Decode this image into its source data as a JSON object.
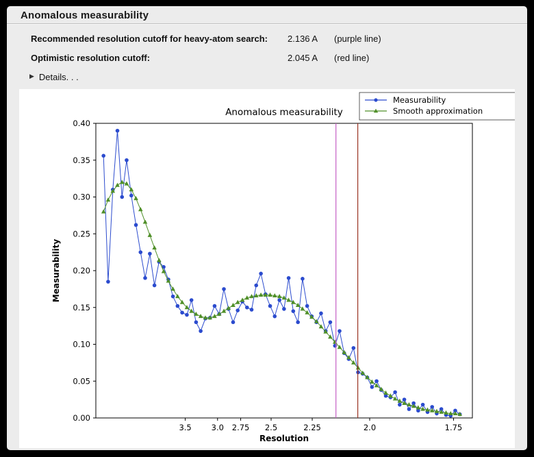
{
  "window": {
    "title": "Anomalous measurability",
    "rows": [
      {
        "label": "Recommended resolution cutoff for heavy-atom search:",
        "value": "2.136 A",
        "note": "(purple line)"
      },
      {
        "label": "Optimistic resolution cutoff:",
        "value": "2.045 A",
        "note": "(red line)"
      }
    ],
    "details": {
      "icon": "▶",
      "label": "Details. . ."
    }
  },
  "colors": {
    "panel_bg": "#ececec",
    "figure_bg": "#ffffff",
    "measurability_blue": "#2b4bce",
    "smooth_green": "#4f8f28",
    "purple_cutoff": "#c45ec4",
    "red_cutoff": "#993322",
    "axis": "#000000"
  },
  "chart_data": {
    "type": "line",
    "title": "Anomalous measurability",
    "xlabel": "Resolution",
    "ylabel": "Measurability",
    "ylim": [
      0.0,
      0.4
    ],
    "y_ticks": [
      0.0,
      0.05,
      0.1,
      0.15,
      0.2,
      0.25,
      0.3,
      0.35,
      0.4
    ],
    "x_axis": {
      "note": "x is linear in 1/d^2; labels are resolution in Angstrom, decreasing to the right",
      "tick_labels": [
        "3.5",
        "3.0",
        "2.75",
        "2.5",
        "2.25",
        "2.0",
        "1.75"
      ],
      "range_inv_d2": [
        0.0,
        0.34375
      ]
    },
    "legend": {
      "position": "upper right",
      "entries": [
        "Measurability",
        "Smooth approximation"
      ]
    },
    "grid": false,
    "vlines": [
      {
        "resolution": 2.136,
        "color": "#c45ec4",
        "meaning": "Recommended resolution cutoff (purple line)"
      },
      {
        "resolution": 2.045,
        "color": "#993322",
        "meaning": "Optimistic resolution cutoff (red line)"
      }
    ],
    "x_inv_d2": [
      0.007,
      0.0112,
      0.0155,
      0.0197,
      0.0239,
      0.0281,
      0.0324,
      0.0366,
      0.0408,
      0.045,
      0.0493,
      0.0535,
      0.0577,
      0.0619,
      0.0662,
      0.0704,
      0.0746,
      0.0788,
      0.0831,
      0.0873,
      0.0915,
      0.0957,
      0.1,
      0.1042,
      0.1084,
      0.1126,
      0.1169,
      0.1211,
      0.1253,
      0.1295,
      0.1338,
      0.138,
      0.1422,
      0.1464,
      0.1507,
      0.1549,
      0.1591,
      0.1633,
      0.1676,
      0.1718,
      0.176,
      0.1802,
      0.1845,
      0.1887,
      0.1929,
      0.1971,
      0.2014,
      0.2056,
      0.2098,
      0.214,
      0.2183,
      0.2225,
      0.2267,
      0.2309,
      0.2352,
      0.2394,
      0.2436,
      0.2478,
      0.2521,
      0.2563,
      0.2605,
      0.2647,
      0.269,
      0.2732,
      0.2774,
      0.2816,
      0.2859,
      0.2901,
      0.2943,
      0.2985,
      0.3028,
      0.307,
      0.3112,
      0.3154,
      0.3197,
      0.3239,
      0.3281,
      0.3323
    ],
    "series": [
      {
        "name": "Measurability",
        "color": "#2b4bce",
        "marker": "circle",
        "values": [
          0.356,
          0.185,
          0.31,
          0.39,
          0.3,
          0.35,
          0.302,
          0.262,
          0.225,
          0.19,
          0.223,
          0.18,
          0.212,
          0.205,
          0.188,
          0.165,
          0.152,
          0.143,
          0.14,
          0.16,
          0.13,
          0.118,
          0.135,
          0.136,
          0.152,
          0.141,
          0.175,
          0.148,
          0.13,
          0.146,
          0.158,
          0.15,
          0.147,
          0.18,
          0.196,
          0.168,
          0.152,
          0.138,
          0.16,
          0.148,
          0.19,
          0.145,
          0.13,
          0.189,
          0.152,
          0.138,
          0.13,
          0.142,
          0.118,
          0.13,
          0.098,
          0.118,
          0.088,
          0.08,
          0.095,
          0.062,
          0.06,
          0.055,
          0.042,
          0.05,
          0.038,
          0.03,
          0.028,
          0.035,
          0.018,
          0.025,
          0.012,
          0.02,
          0.01,
          0.018,
          0.008,
          0.015,
          0.006,
          0.012,
          0.004,
          0.003,
          0.01,
          0.005
        ]
      },
      {
        "name": "Smooth approximation",
        "color": "#4f8f28",
        "marker": "triangle",
        "values": [
          0.28,
          0.296,
          0.308,
          0.316,
          0.32,
          0.318,
          0.31,
          0.298,
          0.283,
          0.266,
          0.248,
          0.231,
          0.214,
          0.199,
          0.186,
          0.175,
          0.165,
          0.157,
          0.15,
          0.145,
          0.141,
          0.138,
          0.136,
          0.136,
          0.138,
          0.141,
          0.145,
          0.149,
          0.153,
          0.157,
          0.16,
          0.163,
          0.165,
          0.166,
          0.167,
          0.167,
          0.167,
          0.166,
          0.165,
          0.163,
          0.16,
          0.157,
          0.153,
          0.148,
          0.143,
          0.137,
          0.131,
          0.124,
          0.117,
          0.11,
          0.103,
          0.096,
          0.089,
          0.082,
          0.075,
          0.068,
          0.061,
          0.055,
          0.049,
          0.044,
          0.039,
          0.034,
          0.03,
          0.026,
          0.023,
          0.02,
          0.018,
          0.016,
          0.014,
          0.012,
          0.011,
          0.01,
          0.009,
          0.008,
          0.007,
          0.006,
          0.006,
          0.005
        ]
      }
    ]
  }
}
